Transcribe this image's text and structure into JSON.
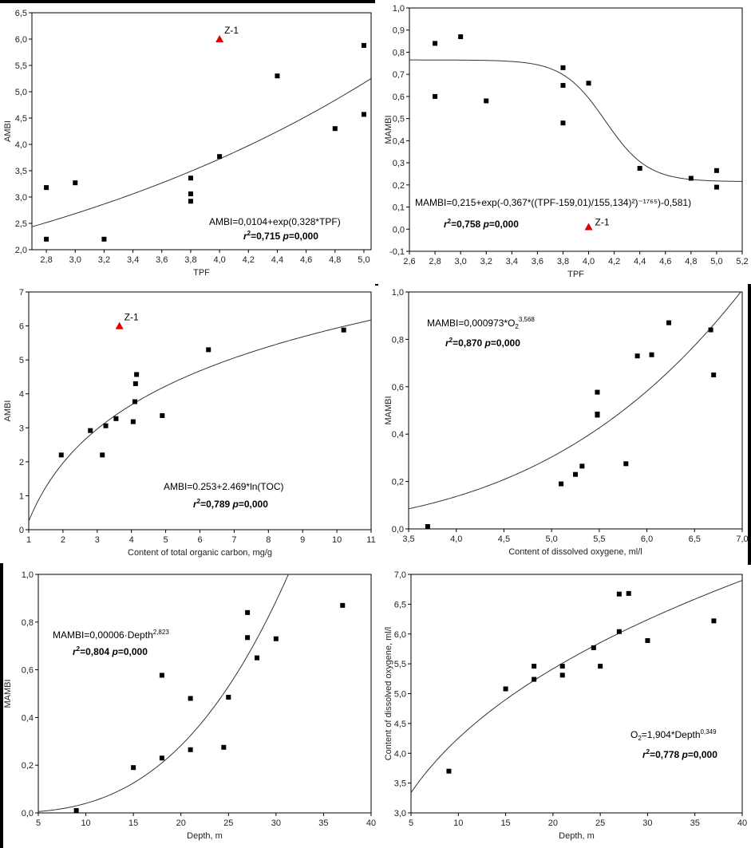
{
  "chart_data": [
    {
      "type": "scatter",
      "xlabel": "TPF",
      "ylabel": "AMBI",
      "xlim": [
        2.7,
        5.05
      ],
      "ylim": [
        2.0,
        6.5
      ],
      "xticks": [
        "2,8",
        "3,0",
        "3,2",
        "3,4",
        "3,6",
        "3,8",
        "4,0",
        "4,2",
        "4,4",
        "4,6",
        "4,8",
        "5,0"
      ],
      "yticks": [
        "2,0",
        "2,5",
        "3,0",
        "3,5",
        "4,0",
        "4,5",
        "5,0",
        "5,5",
        "6,0",
        "6,5"
      ],
      "points": [
        {
          "x": 2.8,
          "y": 3.18
        },
        {
          "x": 2.8,
          "y": 2.2
        },
        {
          "x": 3.0,
          "y": 3.27
        },
        {
          "x": 3.2,
          "y": 2.2
        },
        {
          "x": 3.8,
          "y": 3.36
        },
        {
          "x": 3.8,
          "y": 3.06
        },
        {
          "x": 3.8,
          "y": 2.92
        },
        {
          "x": 4.0,
          "y": 3.77
        },
        {
          "x": 4.4,
          "y": 5.3
        },
        {
          "x": 4.8,
          "y": 4.3
        },
        {
          "x": 5.0,
          "y": 5.88
        },
        {
          "x": 5.0,
          "y": 4.57
        }
      ],
      "highlight": {
        "label": "Z-1",
        "x": 4.0,
        "y": 6.0,
        "color": "#e00000"
      },
      "fit": {
        "kind": "exp",
        "a": 0.0104,
        "b": 0.328
      },
      "equation": "AMBI=0,0104+exp(0,328*TPF)",
      "stats": {
        "r2": "0,715",
        "p": "0,000"
      }
    },
    {
      "type": "scatter",
      "xlabel": "TPF",
      "ylabel": "MAMBI",
      "xlim": [
        2.6,
        5.2
      ],
      "ylim": [
        -0.1,
        1.0
      ],
      "xticks": [
        "2,6",
        "2,8",
        "3,0",
        "3,2",
        "3,4",
        "3,6",
        "3,8",
        "4,0",
        "4,2",
        "4,4",
        "4,6",
        "4,8",
        "5,0",
        "5,2"
      ],
      "yticks": [
        "-0,1",
        "0,0",
        "0,1",
        "0,2",
        "0,3",
        "0,4",
        "0,5",
        "0,6",
        "0,7",
        "0,8",
        "0,9",
        "1,0"
      ],
      "points": [
        {
          "x": 2.8,
          "y": 0.84
        },
        {
          "x": 2.8,
          "y": 0.6
        },
        {
          "x": 3.0,
          "y": 0.87
        },
        {
          "x": 3.2,
          "y": 0.58
        },
        {
          "x": 3.8,
          "y": 0.73
        },
        {
          "x": 3.8,
          "y": 0.65
        },
        {
          "x": 3.8,
          "y": 0.48
        },
        {
          "x": 4.0,
          "y": 0.66
        },
        {
          "x": 4.4,
          "y": 0.275
        },
        {
          "x": 4.8,
          "y": 0.23
        },
        {
          "x": 5.0,
          "y": 0.265
        },
        {
          "x": 5.0,
          "y": 0.19
        }
      ],
      "highlight": {
        "label": "Z-1",
        "x": 4.0,
        "y": 0.01,
        "color": "#e00000"
      },
      "fit": {
        "kind": "gauss",
        "a": 0.215,
        "b": -0.367,
        "c": 159.01,
        "d": 155.134,
        "e": -176.5,
        "f": -0.581
      },
      "equation": "MAMBI=0,215+exp(-0,367*((TPF-159,01)/155,134)²)⁻¹⁷⁶⁵)-0,581)",
      "stats": {
        "r2": "0,758",
        "p": "0,000"
      }
    },
    {
      "type": "scatter",
      "xlabel": "Content of total organic carbon, mg/g",
      "ylabel": "AMBI",
      "xlim": [
        1,
        11
      ],
      "ylim": [
        0,
        7
      ],
      "xticks": [
        "1",
        "2",
        "3",
        "4",
        "5",
        "6",
        "7",
        "8",
        "9",
        "10",
        "11"
      ],
      "yticks": [
        "0",
        "1",
        "2",
        "3",
        "4",
        "5",
        "6",
        "7"
      ],
      "points": [
        {
          "x": 1.95,
          "y": 2.2
        },
        {
          "x": 2.8,
          "y": 2.92
        },
        {
          "x": 3.15,
          "y": 2.2
        },
        {
          "x": 3.25,
          "y": 3.06
        },
        {
          "x": 3.55,
          "y": 3.27
        },
        {
          "x": 4.05,
          "y": 3.18
        },
        {
          "x": 4.1,
          "y": 3.77
        },
        {
          "x": 4.12,
          "y": 4.3
        },
        {
          "x": 4.15,
          "y": 4.57
        },
        {
          "x": 4.9,
          "y": 3.36
        },
        {
          "x": 6.25,
          "y": 5.3
        },
        {
          "x": 10.2,
          "y": 5.88
        }
      ],
      "highlight": {
        "label": "Z-1",
        "x": 3.65,
        "y": 6.0,
        "color": "#e00000"
      },
      "fit": {
        "kind": "log",
        "a": 0.253,
        "b": 2.469
      },
      "equation": "AMBI=0.253+2.469*ln(TOC)",
      "stats": {
        "r2": "0,789",
        "p": "0,000"
      }
    },
    {
      "type": "scatter",
      "xlabel": "Content of dissolved oxygene, ml/l",
      "ylabel": "MAMBI",
      "xlim": [
        3.5,
        7.0
      ],
      "ylim": [
        0,
        1.0
      ],
      "xticks": [
        "3,5",
        "4,0",
        "4,5",
        "5,0",
        "5,5",
        "6,0",
        "6,5",
        "7,0"
      ],
      "yticks": [
        "0,0",
        "0,2",
        "0,4",
        "0,6",
        "0,8",
        "1,0"
      ],
      "points": [
        {
          "x": 3.7,
          "y": 0.01
        },
        {
          "x": 5.1,
          "y": 0.19
        },
        {
          "x": 5.25,
          "y": 0.23
        },
        {
          "x": 5.32,
          "y": 0.265
        },
        {
          "x": 5.48,
          "y": 0.485
        },
        {
          "x": 5.48,
          "y": 0.48
        },
        {
          "x": 5.48,
          "y": 0.577
        },
        {
          "x": 5.78,
          "y": 0.275
        },
        {
          "x": 5.9,
          "y": 0.73
        },
        {
          "x": 6.05,
          "y": 0.735
        },
        {
          "x": 6.23,
          "y": 0.87
        },
        {
          "x": 6.67,
          "y": 0.84
        },
        {
          "x": 6.7,
          "y": 0.65
        }
      ],
      "fit": {
        "kind": "power",
        "a": 0.000973,
        "b": 3.568
      },
      "equation": "MAMBI=0,000973*O",
      "equation_sub": "2",
      "equation_sup": "3,568",
      "stats": {
        "r2": "0,870",
        "p": "0,000"
      }
    },
    {
      "type": "scatter",
      "xlabel": "Depth, m",
      "ylabel": "MAMBI",
      "xlim": [
        5,
        40
      ],
      "ylim": [
        0,
        1.0
      ],
      "xticks": [
        "5",
        "10",
        "15",
        "20",
        "25",
        "30",
        "35",
        "40"
      ],
      "yticks": [
        "0,0",
        "0,2",
        "0,4",
        "0,6",
        "0,8",
        "1,0"
      ],
      "points": [
        {
          "x": 9,
          "y": 0.01
        },
        {
          "x": 15,
          "y": 0.19
        },
        {
          "x": 18,
          "y": 0.23
        },
        {
          "x": 18,
          "y": 0.577
        },
        {
          "x": 21,
          "y": 0.48
        },
        {
          "x": 21,
          "y": 0.265
        },
        {
          "x": 24.5,
          "y": 0.275
        },
        {
          "x": 25,
          "y": 0.485
        },
        {
          "x": 27,
          "y": 0.84
        },
        {
          "x": 27,
          "y": 0.735
        },
        {
          "x": 28,
          "y": 0.65
        },
        {
          "x": 30,
          "y": 0.73
        },
        {
          "x": 37,
          "y": 0.87
        }
      ],
      "fit": {
        "kind": "power",
        "a": 6e-05,
        "b": 2.823
      },
      "equation": "MAMBI=0,00006·Depth",
      "equation_sup": "2,823",
      "stats": {
        "r2": "0,804",
        "p": "0,000"
      }
    },
    {
      "type": "scatter",
      "xlabel": "Depth, m",
      "ylabel": "Content of dissolved oxygene, ml/l",
      "xlim": [
        5,
        40
      ],
      "ylim": [
        3.0,
        7.0
      ],
      "xticks": [
        "5",
        "10",
        "15",
        "20",
        "25",
        "30",
        "35",
        "40"
      ],
      "yticks": [
        "3,0",
        "3,5",
        "4,0",
        "4,5",
        "5,0",
        "5,5",
        "6,0",
        "6,5",
        "7,0"
      ],
      "points": [
        {
          "x": 9,
          "y": 3.7
        },
        {
          "x": 15,
          "y": 5.08
        },
        {
          "x": 18,
          "y": 5.46
        },
        {
          "x": 18,
          "y": 5.24
        },
        {
          "x": 21,
          "y": 5.46
        },
        {
          "x": 21,
          "y": 5.31
        },
        {
          "x": 24.3,
          "y": 5.77
        },
        {
          "x": 25,
          "y": 5.46
        },
        {
          "x": 27,
          "y": 6.67
        },
        {
          "x": 27,
          "y": 6.04
        },
        {
          "x": 28,
          "y": 6.68
        },
        {
          "x": 30,
          "y": 5.89
        },
        {
          "x": 37,
          "y": 6.22
        }
      ],
      "fit": {
        "kind": "power",
        "a": 1.904,
        "b": 0.349
      },
      "equation": "O",
      "equation_sub": "2",
      "equation_rest": "=1,904*Depth",
      "equation_sup": "0,349",
      "stats": {
        "r2": "0,778",
        "p": "0,000"
      }
    }
  ]
}
